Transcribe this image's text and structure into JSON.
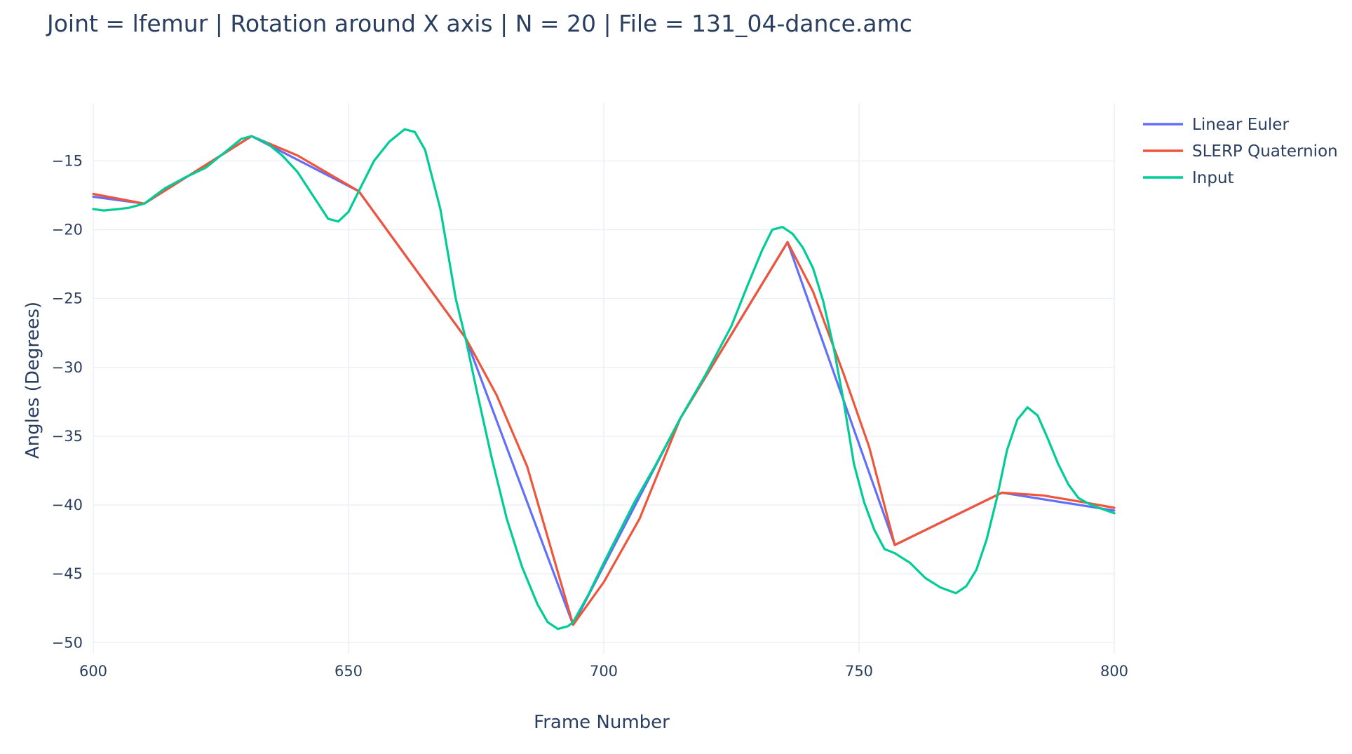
{
  "chart_data": {
    "type": "line",
    "title": "Joint = lfemur | Rotation around X axis | N = 20 | File = 131_04-dance.amc",
    "xlabel": "Frame Number",
    "ylabel": "Angles (Degrees)",
    "xlim": [
      600,
      800
    ],
    "ylim": [
      -50.8,
      -10.8
    ],
    "xticks": [
      600,
      650,
      700,
      750,
      800
    ],
    "yticks": [
      -15,
      -20,
      -25,
      -30,
      -35,
      -40,
      -45,
      -50
    ],
    "grid": true,
    "legend_position": "top-right",
    "series": [
      {
        "name": "Linear Euler",
        "color": "#636efa",
        "x": [
          600,
          610,
          631,
          652,
          673,
          694,
          715,
          736,
          757,
          778,
          800
        ],
        "y": [
          -17.6,
          -18.1,
          -13.2,
          -17.2,
          -27.9,
          -48.7,
          -33.7,
          -20.9,
          -42.9,
          -39.1,
          -40.4
        ]
      },
      {
        "name": "SLERP Quaternion",
        "color": "#ef553b",
        "x": [
          600,
          610,
          631,
          640,
          652,
          673,
          679,
          685,
          694,
          700,
          707,
          715,
          736,
          741,
          747,
          752,
          757,
          778,
          786,
          794,
          800
        ],
        "y": [
          -17.4,
          -18.1,
          -13.2,
          -14.6,
          -17.2,
          -27.9,
          -32.0,
          -37.2,
          -48.7,
          -45.6,
          -41.0,
          -33.7,
          -20.9,
          -24.5,
          -30.5,
          -35.8,
          -42.9,
          -39.1,
          -39.3,
          -39.8,
          -40.2
        ]
      },
      {
        "name": "Input",
        "color": "#00cc96",
        "x": [
          600,
          602,
          605,
          607,
          610,
          614,
          618,
          622,
          626,
          629,
          631,
          634,
          637,
          640,
          643,
          646,
          648,
          650,
          652,
          655,
          658,
          661,
          663,
          665,
          668,
          671,
          673,
          675,
          678,
          681,
          684,
          687,
          689,
          691,
          693,
          694,
          697,
          700,
          703,
          706,
          710,
          715,
          720,
          725,
          728,
          731,
          733,
          735,
          737,
          739,
          741,
          743,
          745,
          747,
          749,
          751,
          753,
          755,
          757,
          760,
          763,
          766,
          769,
          771,
          773,
          775,
          777,
          779,
          781,
          783,
          785,
          787,
          789,
          791,
          793,
          795,
          797,
          800
        ],
        "y": [
          -18.5,
          -18.6,
          -18.5,
          -18.4,
          -18.1,
          -17.0,
          -16.2,
          -15.5,
          -14.3,
          -13.4,
          -13.2,
          -13.7,
          -14.6,
          -15.8,
          -17.5,
          -19.2,
          -19.4,
          -18.7,
          -17.2,
          -15.0,
          -13.6,
          -12.7,
          -12.9,
          -14.2,
          -18.5,
          -25.0,
          -28.0,
          -31.5,
          -36.5,
          -41.0,
          -44.5,
          -47.2,
          -48.5,
          -49.0,
          -48.8,
          -48.5,
          -46.5,
          -44.2,
          -42.0,
          -39.8,
          -37.2,
          -33.7,
          -30.5,
          -27.0,
          -24.2,
          -21.5,
          -20.0,
          -19.8,
          -20.3,
          -21.3,
          -22.8,
          -25.2,
          -28.5,
          -32.5,
          -37.0,
          -39.8,
          -41.8,
          -43.2,
          -43.5,
          -44.2,
          -45.3,
          -46.0,
          -46.4,
          -45.9,
          -44.7,
          -42.5,
          -39.5,
          -36.0,
          -33.8,
          -32.9,
          -33.5,
          -35.2,
          -37.0,
          -38.5,
          -39.5,
          -39.9,
          -40.2,
          -40.6
        ]
      }
    ]
  }
}
